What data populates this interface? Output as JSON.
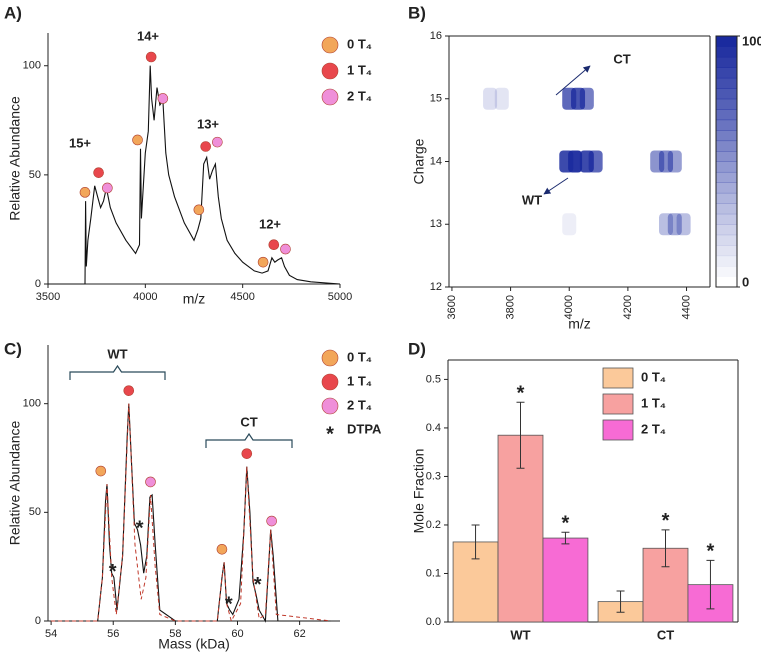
{
  "chart_data": [
    {
      "type": "line",
      "title": "A)",
      "xlabel": "m/z",
      "ylabel": "Relative Abundance",
      "xlim": [
        3500,
        5000
      ],
      "xticks": [
        3500,
        4000,
        4500,
        5000
      ],
      "ylim": [
        0,
        115
      ],
      "yticks": [
        0,
        50,
        100
      ],
      "series": [
        {
          "color": "#111111",
          "x": [
            3500,
            3690,
            3693,
            3697,
            3705,
            3720,
            3740,
            3755,
            3770,
            3785,
            3800,
            3820,
            3850,
            3900,
            3950,
            3970,
            3975,
            3980,
            4000,
            4015,
            4025,
            4032,
            4045,
            4060,
            4075,
            4090,
            4105,
            4120,
            4150,
            4200,
            4250,
            4270,
            4285,
            4300,
            4315,
            4330,
            4345,
            4360,
            4375,
            4390,
            4420,
            4460,
            4500,
            4560,
            4600,
            4630,
            4650,
            4665,
            4680,
            4700,
            4715,
            4740,
            4780,
            4850,
            5000
          ],
          "values": [
            0,
            0,
            38,
            8,
            20,
            30,
            45,
            40,
            35,
            38,
            44,
            35,
            28,
            20,
            14,
            18,
            62,
            30,
            60,
            70,
            100,
            85,
            75,
            90,
            82,
            84,
            60,
            50,
            40,
            28,
            20,
            25,
            30,
            55,
            58,
            48,
            52,
            55,
            40,
            30,
            20,
            14,
            10,
            6,
            5,
            6,
            12,
            10,
            11,
            12,
            8,
            4,
            2,
            1,
            0
          ]
        }
      ],
      "markers": [
        {
          "name": "0 T₄",
          "color": "#f2a65a",
          "x": [
            3690,
            3960,
            4275,
            4605
          ],
          "values": [
            42,
            66,
            34,
            10
          ]
        },
        {
          "name": "1 T₄",
          "color": "#e8474c",
          "x": [
            3760,
            4030,
            4310,
            4660
          ],
          "values": [
            51,
            104,
            63,
            18
          ]
        },
        {
          "name": "2 T₄",
          "color": "#ef8fd9",
          "x": [
            3805,
            4090,
            4370,
            4720
          ],
          "values": [
            44,
            85,
            65,
            16
          ]
        }
      ],
      "annotations": [
        "15+",
        "14+",
        "13+",
        "12+"
      ]
    },
    {
      "type": "heatmap",
      "title": "B)",
      "xlabel": "m/z",
      "ylabel": "Charge",
      "box": true,
      "xlim": [
        3590,
        4480
      ],
      "xticks": [
        3600,
        3800,
        4000,
        4200,
        4400
      ],
      "ylim": [
        12,
        16
      ],
      "yticks": [
        12,
        13,
        14,
        15,
        16
      ],
      "clim": [
        0,
        100
      ],
      "cticks": [
        0,
        100
      ],
      "colormap": [
        "#ffffff",
        "#1a2a9e"
      ],
      "cells": {
        "x": [
          3730,
          3770,
          4000,
          4030,
          4060,
          3990,
          4020,
          4060,
          4090,
          4300,
          4330,
          4360,
          4000,
          4330,
          4360,
          4390
        ],
        "y": [
          15,
          15,
          15,
          15,
          15,
          14,
          14,
          14,
          14,
          14,
          14,
          14,
          13,
          13,
          13,
          13
        ],
        "values": [
          15,
          12,
          70,
          80,
          60,
          85,
          95,
          85,
          70,
          50,
          55,
          45,
          8,
          30,
          40,
          30
        ]
      },
      "annotations": [
        "CT",
        "WT"
      ]
    },
    {
      "type": "line",
      "title": "C)",
      "xlabel": "Mass (kDa)",
      "ylabel": "Relative Abundance",
      "xlim": [
        53.9,
        63.3
      ],
      "xticks": [
        54,
        56,
        58,
        60,
        62
      ],
      "ylim": [
        0,
        127
      ],
      "yticks": [
        0,
        50,
        100
      ],
      "series": [
        {
          "color": "#111111",
          "x": [
            54,
            55.5,
            55.65,
            55.75,
            55.8,
            55.88,
            55.95,
            56.02,
            56.12,
            56.3,
            56.45,
            56.5,
            56.58,
            56.68,
            56.78,
            56.88,
            56.98,
            57.08,
            57.18,
            57.25,
            57.35,
            57.5,
            58,
            59.35,
            59.5,
            59.57,
            59.65,
            59.75,
            59.85,
            60.05,
            60.2,
            60.3,
            60.4,
            60.5,
            60.6,
            60.7,
            60.9,
            61.0,
            61.07,
            61.15,
            61.3,
            63
          ],
          "values": [
            0,
            0,
            20,
            55,
            63,
            35,
            22,
            20,
            5,
            30,
            85,
            100,
            75,
            45,
            42,
            35,
            22,
            30,
            57,
            58,
            35,
            5,
            0,
            0,
            20,
            27,
            8,
            5,
            3,
            10,
            40,
            71,
            50,
            18,
            12,
            5,
            0,
            25,
            42,
            30,
            0,
            0
          ]
        },
        {
          "color": "#c0392b",
          "dash": true,
          "x": [
            54,
            55.5,
            55.65,
            55.8,
            55.95,
            56.1,
            56.3,
            56.5,
            56.7,
            56.9,
            57.05,
            57.2,
            57.35,
            57.5,
            58,
            59.35,
            59.5,
            59.57,
            59.65,
            59.8,
            60.1,
            60.3,
            60.5,
            60.7,
            60.9,
            61.07,
            61.25,
            63
          ],
          "values": [
            0,
            0,
            20,
            63,
            20,
            3,
            30,
            100,
            35,
            10,
            20,
            58,
            25,
            3,
            0,
            0,
            20,
            27,
            8,
            0,
            8,
            71,
            20,
            1,
            3,
            42,
            3,
            0
          ]
        }
      ],
      "markers": [
        {
          "name": "0 T₄",
          "color": "#f2a65a",
          "x": [
            55.6,
            59.5
          ],
          "values": [
            69,
            33
          ]
        },
        {
          "name": "1 T₄",
          "color": "#e8474c",
          "x": [
            56.5,
            60.3
          ],
          "values": [
            106,
            77
          ]
        },
        {
          "name": "2 T₄",
          "color": "#ef8fd9",
          "x": [
            57.2,
            61.1
          ],
          "values": [
            64,
            46
          ]
        },
        {
          "name": "DTPA",
          "symbol": "*",
          "x": [
            55.98,
            56.85,
            59.72,
            60.65
          ],
          "values": [
            24,
            44,
            9,
            18
          ]
        }
      ],
      "annotations": [
        "WT",
        "CT"
      ]
    },
    {
      "type": "bar",
      "title": "D)",
      "ylabel": "Mole Fraction",
      "box": true,
      "legend": "upper right",
      "categories": [
        "WT",
        "CT"
      ],
      "ylim": [
        0,
        0.54
      ],
      "yticks": [
        {
          "value": 0,
          "label": "0.0"
        },
        0.1,
        0.2,
        0.3,
        0.4,
        0.5
      ],
      "series": [
        {
          "name": "0 T₄",
          "color": "#fbc99a",
          "values": [
            0.165,
            0.042
          ],
          "errors": [
            0.035,
            0.022
          ],
          "labels": [
            null,
            null
          ]
        },
        {
          "name": "1 T₄",
          "color": "#f7a1a0",
          "values": [
            0.385,
            0.152
          ],
          "errors": [
            0.068,
            0.038
          ],
          "labels": [
            "*",
            "*"
          ]
        },
        {
          "name": "2 T₄",
          "color": "#f76bd4",
          "values": [
            0.173,
            0.077
          ],
          "errors": [
            0.012,
            0.05
          ],
          "labels": [
            "*",
            "*"
          ]
        }
      ]
    }
  ]
}
